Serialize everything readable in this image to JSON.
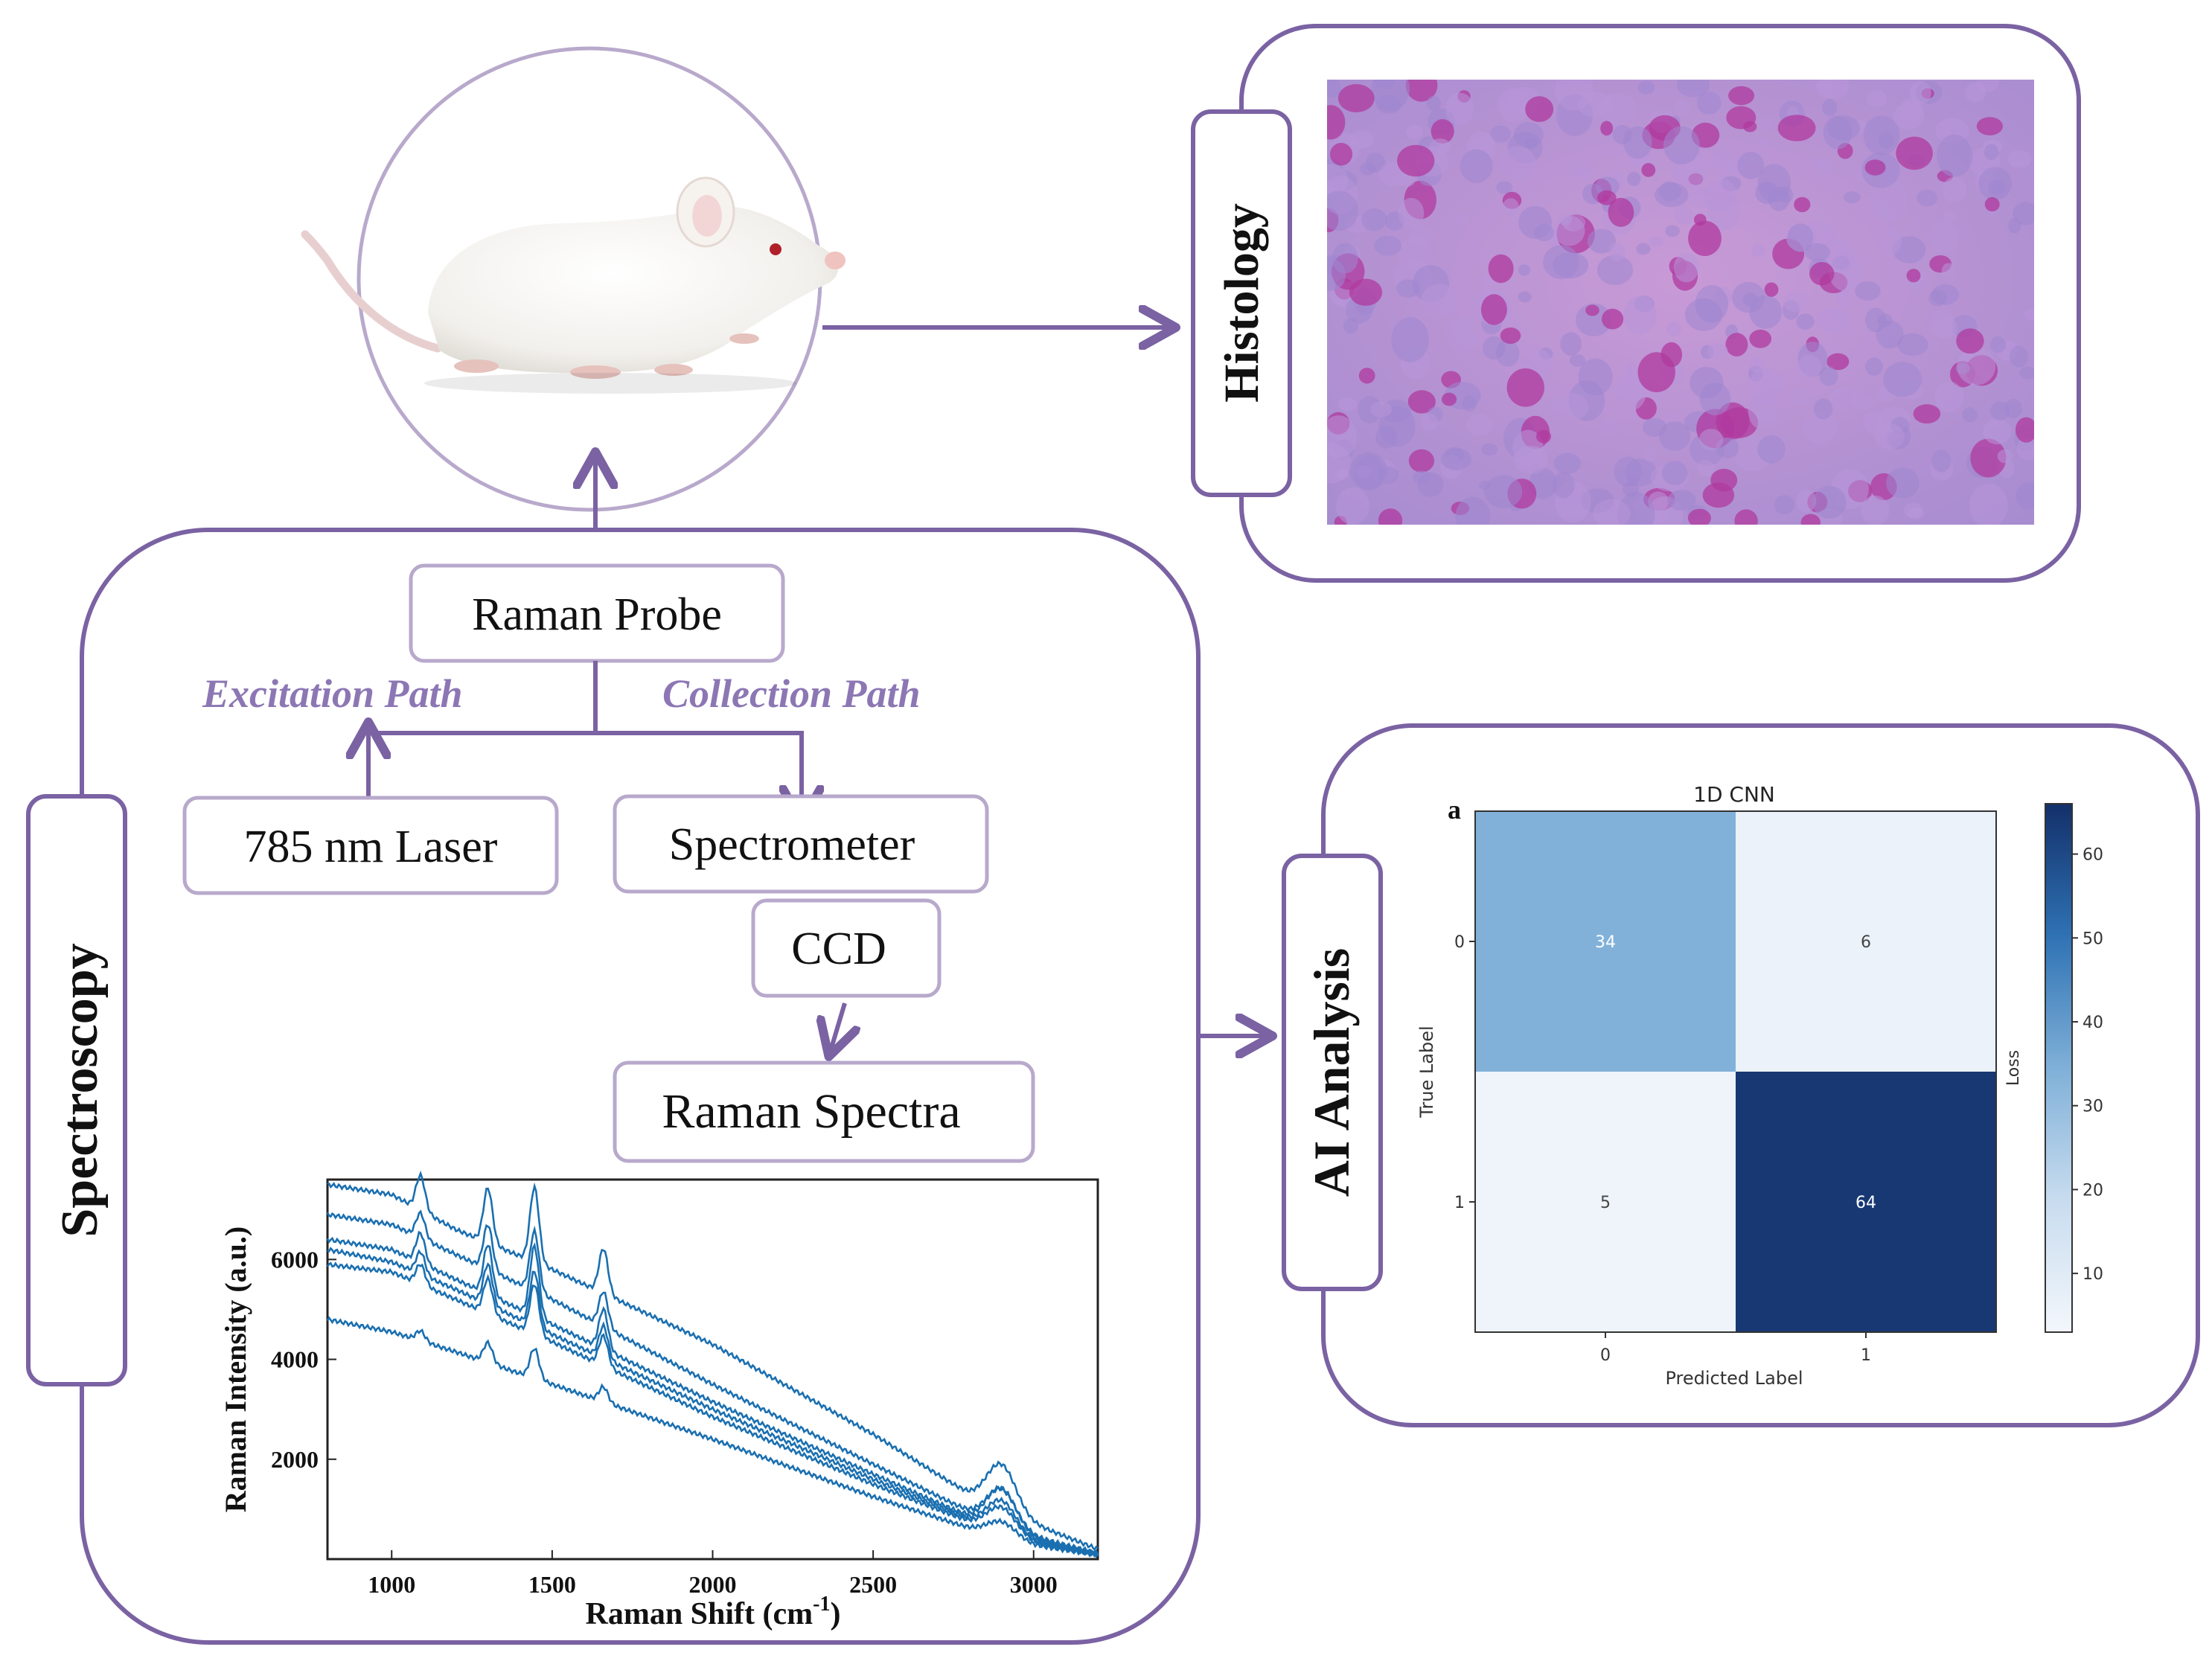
{
  "colors": {
    "purple": "#7a62a3",
    "purple_light": "#b8a9cc",
    "path_text": "#8c77b4",
    "cmap_low": "#f3f7fc",
    "cmap_mid": "#7fb0d8",
    "cmap_high": "#13306a",
    "spectra": "#1a6fb0"
  },
  "sections": {
    "histology": "Histology",
    "spectroscopy": "Spectroscopy",
    "ai": "AI Analysis"
  },
  "pipeline": {
    "probe": "Raman Probe",
    "excitation": "Excitation Path",
    "collection": "Collection Path",
    "laser": "785 nm Laser",
    "spectrometer": "Spectrometer",
    "ccd": "CCD",
    "spectra": "Raman Spectra"
  },
  "icons": {
    "animal": "mouse-icon",
    "tissue": "histology-micrograph"
  },
  "raman_plot": {
    "ylabel": "Raman Intensity (a.u.)",
    "xlabel_main": "Raman Shift (cm",
    "xlabel_sup": "-1",
    "xlabel_end": ")",
    "xlim": [
      800,
      3200
    ],
    "ylim": [
      0,
      7600
    ],
    "xticks": [
      1000,
      1500,
      2000,
      2500,
      3000
    ],
    "yticks": [
      2000,
      4000,
      6000
    ],
    "base_curves": [
      [
        [
          800,
          7500
        ],
        [
          1000,
          7300
        ],
        [
          1200,
          6600
        ],
        [
          1500,
          5800
        ],
        [
          2000,
          4300
        ],
        [
          2500,
          2500
        ],
        [
          2800,
          1300
        ],
        [
          3000,
          700
        ],
        [
          3200,
          200
        ]
      ],
      [
        [
          800,
          6900
        ],
        [
          1000,
          6700
        ],
        [
          1200,
          6100
        ],
        [
          1500,
          5200
        ],
        [
          2000,
          3500
        ],
        [
          2500,
          1900
        ],
        [
          2800,
          950
        ],
        [
          3000,
          450
        ],
        [
          3200,
          120
        ]
      ],
      [
        [
          800,
          6400
        ],
        [
          1000,
          6200
        ],
        [
          1200,
          5600
        ],
        [
          1500,
          4700
        ],
        [
          2000,
          3150
        ],
        [
          2500,
          1700
        ],
        [
          2800,
          850
        ],
        [
          3000,
          400
        ],
        [
          3200,
          100
        ]
      ],
      [
        [
          800,
          6200
        ],
        [
          1000,
          5950
        ],
        [
          1200,
          5400
        ],
        [
          1500,
          4500
        ],
        [
          2000,
          3000
        ],
        [
          2500,
          1600
        ],
        [
          2800,
          800
        ],
        [
          3000,
          350
        ],
        [
          3200,
          100
        ]
      ],
      [
        [
          800,
          5900
        ],
        [
          1000,
          5750
        ],
        [
          1200,
          5200
        ],
        [
          1500,
          4350
        ],
        [
          2000,
          2850
        ],
        [
          2500,
          1500
        ],
        [
          2800,
          750
        ],
        [
          3000,
          330
        ],
        [
          3200,
          90
        ]
      ],
      [
        [
          800,
          4800
        ],
        [
          1000,
          4550
        ],
        [
          1200,
          4150
        ],
        [
          1500,
          3500
        ],
        [
          2000,
          2400
        ],
        [
          2500,
          1250
        ],
        [
          2800,
          620
        ],
        [
          3000,
          280
        ],
        [
          3200,
          80
        ]
      ]
    ],
    "peaks": [
      {
        "x": 1090,
        "h": [
          700,
          500,
          600,
          450,
          400,
          200
        ]
      },
      {
        "x": 1300,
        "h": [
          1100,
          900,
          1000,
          800,
          700,
          400
        ]
      },
      {
        "x": 1445,
        "h": [
          1500,
          1200,
          1400,
          1100,
          1000,
          600
        ]
      },
      {
        "x": 1660,
        "h": [
          900,
          700,
          800,
          650,
          600,
          300
        ]
      },
      {
        "x": 2900,
        "h": [
          900,
          700,
          800,
          600,
          500,
          300
        ]
      }
    ]
  },
  "confusion": {
    "panel_letter": "a",
    "title": "1D CNN",
    "xlabel": "Predicted Label",
    "ylabel": "True Label",
    "cbar_label": "Loss",
    "row_labels": [
      "0",
      "1"
    ],
    "col_labels": [
      "0",
      "1"
    ],
    "matrix": [
      [
        34,
        6
      ],
      [
        5,
        64
      ]
    ],
    "cbar_range": [
      3,
      66
    ],
    "cbar_ticks": [
      10,
      20,
      30,
      40,
      50,
      60
    ]
  }
}
